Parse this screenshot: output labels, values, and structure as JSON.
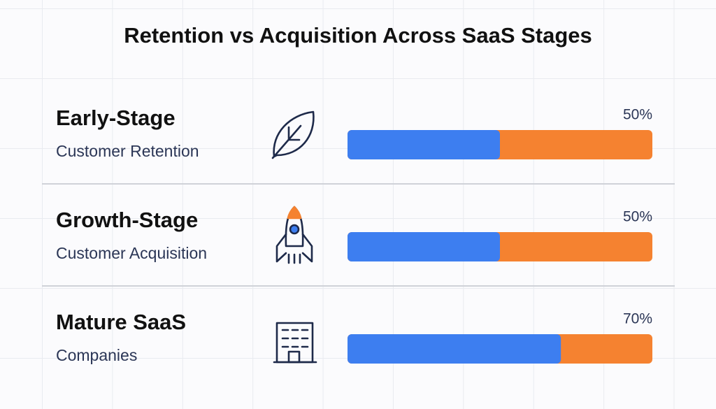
{
  "chart_data": {
    "type": "bar",
    "title": "Retention vs Acquisition Across SaaS Stages",
    "categories": [
      "Early-Stage",
      "Growth-Stage",
      "Mature SaaS"
    ],
    "subtitles": [
      "Customer Retention",
      "Customer Acquisition",
      "Companies"
    ],
    "values": [
      50,
      50,
      70
    ],
    "value_labels": [
      "50%",
      "50%",
      "70%"
    ],
    "color": "#3d7ef0",
    "track_color": "#f58230",
    "xlim": [
      0,
      100
    ]
  }
}
